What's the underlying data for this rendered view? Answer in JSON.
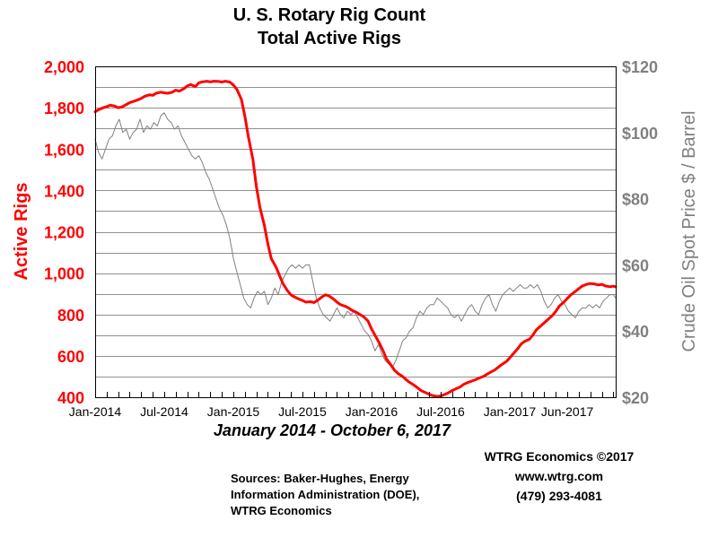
{
  "chart_data": {
    "type": "line",
    "title": "U. S. Rotary Rig Count",
    "subtitle": "Total Active Rigs",
    "period_label": "January 2014 - October 6, 2017",
    "xlabel": "",
    "x_tick_labels": [
      "Jan-2014",
      "Jul-2014",
      "Jan-2015",
      "Jul-2015",
      "Jan-2016",
      "Jul-2016",
      "Jan-2017",
      "Jun-2017"
    ],
    "x_tick_values": [
      0,
      6,
      12,
      18,
      24,
      30,
      36,
      41
    ],
    "x_domain": [
      0,
      45.2
    ],
    "y_left": {
      "label": "Active Rigs",
      "range": [
        400,
        2000
      ],
      "tick_labels": [
        "2,000",
        "1,800",
        "1,600",
        "1,400",
        "1,200",
        "1,000",
        "800",
        "600",
        "400"
      ],
      "tick_values": [
        2000,
        1800,
        1600,
        1400,
        1200,
        1000,
        800,
        600,
        400
      ],
      "color": "#ff0000"
    },
    "y_right": {
      "label": "Crude Oil Spot Price $ / Barrel",
      "range": [
        20,
        120
      ],
      "tick_labels": [
        "$120",
        "$100",
        "$80",
        "$60",
        "$40",
        "$20"
      ],
      "tick_values": [
        120,
        100,
        80,
        60,
        40,
        20
      ],
      "color": "#808080"
    },
    "grid": true,
    "series": [
      {
        "axis": "left",
        "color": "#ff0000",
        "points": [
          [
            0,
            1780
          ],
          [
            0.3,
            1790
          ],
          [
            0.7,
            1800
          ],
          [
            1.0,
            1805
          ],
          [
            1.3,
            1812
          ],
          [
            1.7,
            1808
          ],
          [
            2.0,
            1800
          ],
          [
            2.3,
            1803
          ],
          [
            2.7,
            1815
          ],
          [
            3.0,
            1825
          ],
          [
            3.3,
            1830
          ],
          [
            3.7,
            1838
          ],
          [
            4.0,
            1845
          ],
          [
            4.3,
            1855
          ],
          [
            4.7,
            1862
          ],
          [
            5.0,
            1860
          ],
          [
            5.3,
            1870
          ],
          [
            5.7,
            1875
          ],
          [
            6.0,
            1872
          ],
          [
            6.3,
            1870
          ],
          [
            6.7,
            1875
          ],
          [
            7.0,
            1885
          ],
          [
            7.3,
            1880
          ],
          [
            7.7,
            1892
          ],
          [
            8.0,
            1905
          ],
          [
            8.3,
            1912
          ],
          [
            8.7,
            1902
          ],
          [
            9.0,
            1920
          ],
          [
            9.3,
            1925
          ],
          [
            9.7,
            1928
          ],
          [
            10.0,
            1925
          ],
          [
            10.3,
            1928
          ],
          [
            10.7,
            1927
          ],
          [
            11.0,
            1924
          ],
          [
            11.3,
            1928
          ],
          [
            11.7,
            1924
          ],
          [
            12.0,
            1910
          ],
          [
            12.3,
            1890
          ],
          [
            12.7,
            1840
          ],
          [
            13.0,
            1760
          ],
          [
            13.3,
            1660
          ],
          [
            13.7,
            1550
          ],
          [
            14.0,
            1420
          ],
          [
            14.3,
            1320
          ],
          [
            14.7,
            1230
          ],
          [
            15.0,
            1140
          ],
          [
            15.3,
            1070
          ],
          [
            15.7,
            1030
          ],
          [
            16.0,
            990
          ],
          [
            16.3,
            950
          ],
          [
            16.7,
            915
          ],
          [
            17.0,
            895
          ],
          [
            17.3,
            885
          ],
          [
            17.7,
            875
          ],
          [
            18.0,
            868
          ],
          [
            18.3,
            860
          ],
          [
            18.7,
            862
          ],
          [
            19.0,
            858
          ],
          [
            19.3,
            868
          ],
          [
            19.7,
            885
          ],
          [
            20.0,
            895
          ],
          [
            20.3,
            890
          ],
          [
            20.7,
            875
          ],
          [
            21.0,
            860
          ],
          [
            21.3,
            848
          ],
          [
            21.7,
            840
          ],
          [
            22.0,
            832
          ],
          [
            22.3,
            820
          ],
          [
            22.7,
            810
          ],
          [
            23.0,
            800
          ],
          [
            23.3,
            790
          ],
          [
            23.7,
            768
          ],
          [
            24.0,
            730
          ],
          [
            24.3,
            700
          ],
          [
            24.7,
            660
          ],
          [
            25.0,
            625
          ],
          [
            25.3,
            585
          ],
          [
            25.7,
            555
          ],
          [
            26.0,
            530
          ],
          [
            26.3,
            515
          ],
          [
            26.7,
            500
          ],
          [
            27.0,
            485
          ],
          [
            27.3,
            472
          ],
          [
            27.7,
            458
          ],
          [
            28.0,
            445
          ],
          [
            28.3,
            432
          ],
          [
            28.7,
            422
          ],
          [
            29.0,
            414
          ],
          [
            29.3,
            408
          ],
          [
            29.7,
            404
          ],
          [
            30.0,
            406
          ],
          [
            30.3,
            412
          ],
          [
            30.7,
            422
          ],
          [
            31.0,
            432
          ],
          [
            31.3,
            440
          ],
          [
            31.7,
            450
          ],
          [
            32.0,
            462
          ],
          [
            32.3,
            470
          ],
          [
            32.7,
            478
          ],
          [
            33.0,
            484
          ],
          [
            33.3,
            492
          ],
          [
            33.7,
            500
          ],
          [
            34.0,
            510
          ],
          [
            34.3,
            520
          ],
          [
            34.7,
            532
          ],
          [
            35.0,
            545
          ],
          [
            35.3,
            558
          ],
          [
            35.7,
            572
          ],
          [
            36.0,
            590
          ],
          [
            36.3,
            610
          ],
          [
            36.7,
            635
          ],
          [
            37.0,
            658
          ],
          [
            37.3,
            670
          ],
          [
            37.7,
            680
          ],
          [
            38.0,
            700
          ],
          [
            38.3,
            725
          ],
          [
            38.7,
            745
          ],
          [
            39.0,
            760
          ],
          [
            39.3,
            775
          ],
          [
            39.7,
            795
          ],
          [
            40.0,
            815
          ],
          [
            40.3,
            840
          ],
          [
            40.7,
            860
          ],
          [
            41.0,
            878
          ],
          [
            41.3,
            895
          ],
          [
            41.7,
            912
          ],
          [
            42.0,
            925
          ],
          [
            42.3,
            938
          ],
          [
            42.7,
            946
          ],
          [
            43.0,
            950
          ],
          [
            43.3,
            948
          ],
          [
            43.7,
            943
          ],
          [
            44.0,
            946
          ],
          [
            44.3,
            938
          ],
          [
            44.7,
            934
          ],
          [
            45.0,
            937
          ],
          [
            45.2,
            934
          ]
        ]
      },
      {
        "axis": "right",
        "color": "#808080",
        "points": [
          [
            0,
            98
          ],
          [
            0.3,
            94
          ],
          [
            0.6,
            92
          ],
          [
            0.9,
            95
          ],
          [
            1.2,
            98
          ],
          [
            1.5,
            99
          ],
          [
            1.8,
            102
          ],
          [
            2.1,
            104
          ],
          [
            2.4,
            100
          ],
          [
            2.7,
            101
          ],
          [
            3.0,
            98
          ],
          [
            3.3,
            100
          ],
          [
            3.6,
            101
          ],
          [
            3.9,
            104
          ],
          [
            4.2,
            100
          ],
          [
            4.5,
            102
          ],
          [
            4.8,
            101
          ],
          [
            5.1,
            103
          ],
          [
            5.4,
            102
          ],
          [
            5.7,
            105
          ],
          [
            6.0,
            106
          ],
          [
            6.3,
            104
          ],
          [
            6.6,
            103
          ],
          [
            6.9,
            101
          ],
          [
            7.2,
            102
          ],
          [
            7.5,
            99
          ],
          [
            7.8,
            97
          ],
          [
            8.1,
            95
          ],
          [
            8.4,
            93
          ],
          [
            8.7,
            92
          ],
          [
            9.0,
            93
          ],
          [
            9.3,
            91
          ],
          [
            9.6,
            88
          ],
          [
            9.9,
            86
          ],
          [
            10.2,
            83
          ],
          [
            10.5,
            80
          ],
          [
            10.8,
            77
          ],
          [
            11.1,
            75
          ],
          [
            11.4,
            72
          ],
          [
            11.7,
            68
          ],
          [
            12.0,
            62
          ],
          [
            12.3,
            58
          ],
          [
            12.6,
            54
          ],
          [
            12.9,
            50
          ],
          [
            13.2,
            48
          ],
          [
            13.5,
            47
          ],
          [
            13.8,
            50
          ],
          [
            14.1,
            52
          ],
          [
            14.4,
            51
          ],
          [
            14.7,
            52
          ],
          [
            15.0,
            48
          ],
          [
            15.3,
            50
          ],
          [
            15.6,
            53
          ],
          [
            15.9,
            51
          ],
          [
            16.2,
            55
          ],
          [
            16.5,
            57
          ],
          [
            16.8,
            59
          ],
          [
            17.1,
            60
          ],
          [
            17.4,
            59
          ],
          [
            17.7,
            60
          ],
          [
            18.0,
            59
          ],
          [
            18.3,
            60
          ],
          [
            18.6,
            60
          ],
          [
            18.9,
            55
          ],
          [
            19.2,
            50
          ],
          [
            19.5,
            47
          ],
          [
            19.8,
            45
          ],
          [
            20.1,
            44
          ],
          [
            20.4,
            43
          ],
          [
            20.7,
            45
          ],
          [
            21.0,
            47
          ],
          [
            21.3,
            45
          ],
          [
            21.6,
            44
          ],
          [
            21.9,
            46
          ],
          [
            22.2,
            45
          ],
          [
            22.5,
            46
          ],
          [
            22.8,
            44
          ],
          [
            23.1,
            42
          ],
          [
            23.4,
            40
          ],
          [
            23.7,
            39
          ],
          [
            24.0,
            37
          ],
          [
            24.3,
            34
          ],
          [
            24.6,
            36
          ],
          [
            24.9,
            33
          ],
          [
            25.2,
            31
          ],
          [
            25.5,
            30
          ],
          [
            25.8,
            29
          ],
          [
            26.1,
            31
          ],
          [
            26.4,
            34
          ],
          [
            26.7,
            37
          ],
          [
            27.0,
            38
          ],
          [
            27.3,
            40
          ],
          [
            27.6,
            41
          ],
          [
            27.9,
            44
          ],
          [
            28.2,
            46
          ],
          [
            28.5,
            45
          ],
          [
            28.8,
            47
          ],
          [
            29.1,
            48
          ],
          [
            29.4,
            48
          ],
          [
            29.7,
            50
          ],
          [
            30.0,
            49
          ],
          [
            30.3,
            48
          ],
          [
            30.6,
            47
          ],
          [
            30.9,
            45
          ],
          [
            31.2,
            44
          ],
          [
            31.5,
            45
          ],
          [
            31.8,
            43
          ],
          [
            32.1,
            45
          ],
          [
            32.4,
            47
          ],
          [
            32.7,
            48
          ],
          [
            33.0,
            46
          ],
          [
            33.3,
            45
          ],
          [
            33.6,
            48
          ],
          [
            33.9,
            50
          ],
          [
            34.2,
            51
          ],
          [
            34.5,
            48
          ],
          [
            34.8,
            46
          ],
          [
            35.1,
            49
          ],
          [
            35.4,
            51
          ],
          [
            35.7,
            52
          ],
          [
            36.0,
            53
          ],
          [
            36.3,
            52
          ],
          [
            36.6,
            53
          ],
          [
            36.9,
            54
          ],
          [
            37.2,
            53
          ],
          [
            37.5,
            53
          ],
          [
            37.8,
            54
          ],
          [
            38.1,
            53
          ],
          [
            38.4,
            54
          ],
          [
            38.7,
            52
          ],
          [
            39.0,
            49
          ],
          [
            39.3,
            47
          ],
          [
            39.6,
            48
          ],
          [
            39.9,
            50
          ],
          [
            40.2,
            51
          ],
          [
            40.5,
            49
          ],
          [
            40.8,
            48
          ],
          [
            41.1,
            46
          ],
          [
            41.4,
            45
          ],
          [
            41.7,
            44
          ],
          [
            42.0,
            46
          ],
          [
            42.3,
            47
          ],
          [
            42.6,
            47
          ],
          [
            42.9,
            48
          ],
          [
            43.2,
            47
          ],
          [
            43.5,
            48
          ],
          [
            43.8,
            47
          ],
          [
            44.1,
            49
          ],
          [
            44.4,
            50
          ],
          [
            44.7,
            51
          ],
          [
            45.0,
            51
          ],
          [
            45.2,
            50
          ]
        ]
      }
    ]
  },
  "credits": {
    "org": "WTRG Economics  ©2017",
    "url": "www.wtrg.com",
    "phone": "(479) 293-4081"
  },
  "sources": {
    "line1": "Sources: Baker-Hughes, Energy",
    "line2": "Information Administration (DOE),",
    "line3": "WTRG Economics"
  }
}
